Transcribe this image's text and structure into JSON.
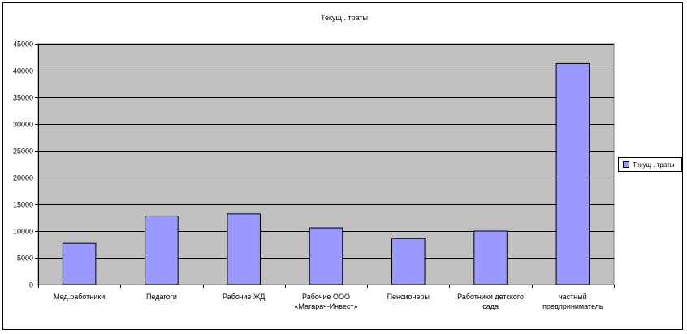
{
  "chart_data": {
    "type": "bar",
    "title": "Текущ . траты",
    "xlabel": "",
    "ylabel": "",
    "categories": [
      [
        "Мед.работники"
      ],
      [
        "Педагоги"
      ],
      [
        "Рабочие ЖД"
      ],
      [
        "Рабочие ООО",
        "«Магарач-Инвест»"
      ],
      [
        "Пенсионеры"
      ],
      [
        "Работники детского",
        "сада"
      ],
      [
        "частный",
        "предприниматель"
      ]
    ],
    "series": [
      {
        "name": "Текущ . траты",
        "values": [
          7700,
          12800,
          13200,
          10600,
          8600,
          10000,
          41300
        ]
      }
    ],
    "ylim": [
      0,
      45000
    ],
    "yticks": [
      0,
      5000,
      10000,
      15000,
      20000,
      25000,
      30000,
      35000,
      40000,
      45000
    ],
    "grid": true,
    "legend_position": "right",
    "colors": {
      "bar": "#9999ff",
      "plot_background": "#c0c0c0",
      "gridline": "#000000"
    }
  }
}
